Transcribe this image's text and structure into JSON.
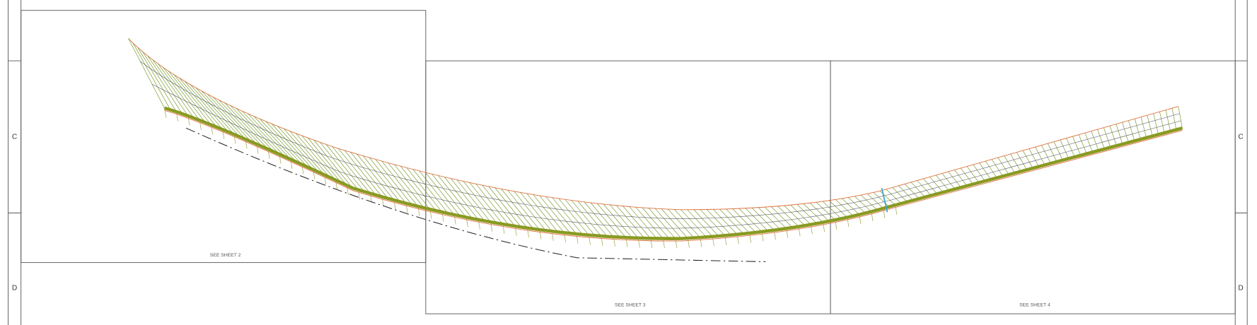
{
  "zones_left": [
    "C",
    "D"
  ],
  "zones_right": [
    "C",
    "D"
  ],
  "viewports": [
    {
      "label": "SEE SHEET 2"
    },
    {
      "label": "SEE SHEET 3"
    },
    {
      "label": "SEE SHEET 4"
    }
  ]
}
